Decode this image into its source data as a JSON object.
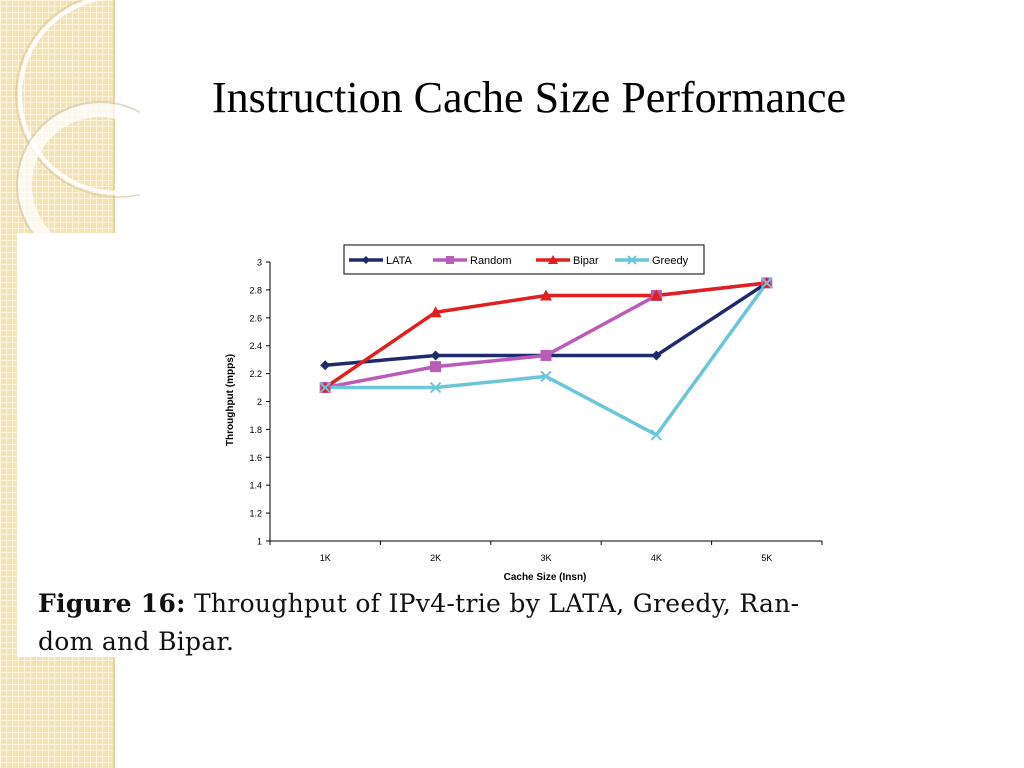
{
  "slide": {
    "title": "Instruction Cache Size Performance"
  },
  "figure": {
    "caption_label": "Figure 16:",
    "caption_text": "Throughput of IPv4-trie by LATA, Greedy, Ran-",
    "caption_text_line2": "dom and Bipar."
  },
  "chart_data": {
    "type": "line",
    "title": "",
    "xlabel": "Cache Size (Insn)",
    "ylabel": "Throughput (mpps)",
    "categories": [
      "1K",
      "2K",
      "3K",
      "4K",
      "5K"
    ],
    "ylim": [
      1,
      3
    ],
    "yticks": [
      "1",
      "1.2",
      "1.4",
      "1.6",
      "1.8",
      "2",
      "2.2",
      "2.4",
      "2.6",
      "2.8",
      "3"
    ],
    "grid": false,
    "legend_position": "top",
    "series": [
      {
        "name": "LATA",
        "color": "#1f2a6e",
        "marker": "diamond",
        "values": [
          2.26,
          2.33,
          2.33,
          2.33,
          2.85
        ]
      },
      {
        "name": "Random",
        "color": "#b85cb8",
        "marker": "square",
        "values": [
          2.1,
          2.25,
          2.33,
          2.76,
          2.85
        ]
      },
      {
        "name": "Bipar",
        "color": "#e02020",
        "marker": "triangle",
        "values": [
          2.1,
          2.64,
          2.76,
          2.76,
          2.85
        ]
      },
      {
        "name": "Greedy",
        "color": "#6cc6d8",
        "marker": "x",
        "values": [
          2.1,
          2.1,
          2.18,
          1.76,
          2.85
        ]
      }
    ]
  }
}
